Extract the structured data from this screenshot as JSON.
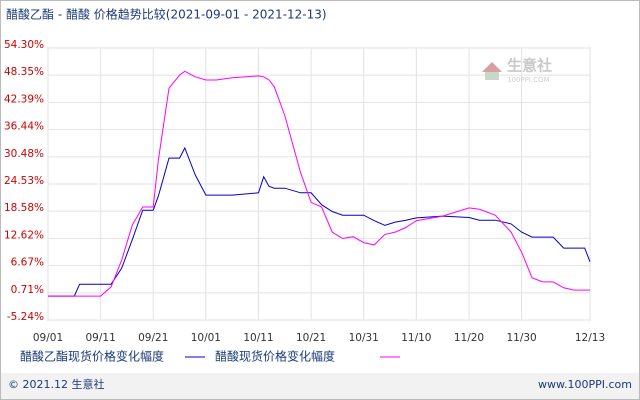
{
  "chart_data": {
    "type": "line",
    "title": "醋酸乙酯 - 醋酸 价格趋势比较(2021-09-01 - 2021-12-13)",
    "x": [
      "09/01",
      "09/06",
      "09/07",
      "09/11",
      "09/13",
      "09/15",
      "09/17",
      "09/19",
      "09/21",
      "09/22",
      "09/24",
      "09/26",
      "09/27",
      "09/29",
      "10/01",
      "10/03",
      "10/06",
      "10/11",
      "10/12",
      "10/13",
      "10/14",
      "10/16",
      "10/19",
      "10/21",
      "10/23",
      "10/25",
      "10/27",
      "10/29",
      "10/31",
      "11/02",
      "11/04",
      "11/06",
      "11/08",
      "11/10",
      "11/15",
      "11/20",
      "11/22",
      "11/25",
      "11/28",
      "11/30",
      "12/02",
      "12/04",
      "12/06",
      "12/08",
      "12/10",
      "12/12",
      "12/13"
    ],
    "series": [
      {
        "name": "醋酸乙酯现货价格变化幅度",
        "color": "#0000cc",
        "values": [
          0,
          0,
          2.6,
          2.6,
          2.6,
          6.1,
          12.3,
          18.8,
          18.8,
          22,
          30.2,
          30.2,
          32.4,
          26.5,
          22.1,
          22.1,
          22.1,
          22.6,
          26.1,
          24,
          23.6,
          23.6,
          22.6,
          22.6,
          20,
          18.5,
          17.7,
          17.7,
          17.7,
          16.5,
          15.5,
          16.2,
          16.6,
          17.1,
          17.5,
          17.2,
          16.6,
          16.6,
          15.8,
          14,
          12.9,
          12.9,
          12.9,
          10.5,
          10.5,
          10.5,
          7.5
        ]
      },
      {
        "name": "醋酸现货价格变化幅度",
        "color": "#ff00ff",
        "values": [
          0,
          0,
          0,
          0,
          2,
          7.9,
          15.5,
          19.5,
          19.5,
          30,
          45.5,
          48.4,
          49.2,
          48,
          47.3,
          47.3,
          47.8,
          48.2,
          48,
          47.3,
          45.8,
          39.5,
          27,
          20.5,
          19.5,
          14,
          12.6,
          13,
          11.7,
          11.2,
          13.5,
          14,
          15,
          16.5,
          17.5,
          19.3,
          19,
          17.7,
          14,
          9.6,
          4,
          3.1,
          3.1,
          1.8,
          1.3,
          1.3,
          1.3
        ]
      }
    ],
    "xlim": [
      "09/01",
      "12/13"
    ],
    "xticks": [
      "09/01",
      "09/11",
      "09/21",
      "10/01",
      "10/11",
      "10/21",
      "10/31",
      "11/10",
      "11/20",
      "11/30",
      "12/13"
    ],
    "ylim": [
      -5.24,
      54.3
    ],
    "yticks": [
      {
        "value": -5.24,
        "label": "-5.24%"
      },
      {
        "value": 0.71,
        "label": "0.71%"
      },
      {
        "value": 6.67,
        "label": "6.67%"
      },
      {
        "value": 12.62,
        "label": "12.62%"
      },
      {
        "value": 18.58,
        "label": "18.58%"
      },
      {
        "value": 24.53,
        "label": "24.53%"
      },
      {
        "value": 30.48,
        "label": "30.48%"
      },
      {
        "value": 36.44,
        "label": "36.44%"
      },
      {
        "value": 42.39,
        "label": "42.39%"
      },
      {
        "value": 48.35,
        "label": "48.35%"
      },
      {
        "value": 54.3,
        "label": "54.30%"
      }
    ],
    "grid": true,
    "watermark": {
      "name": "生意社",
      "site": "100PPI.COM"
    },
    "footer": {
      "left": "© 2021.12 生意社",
      "right": "www.100PPI.com"
    }
  }
}
